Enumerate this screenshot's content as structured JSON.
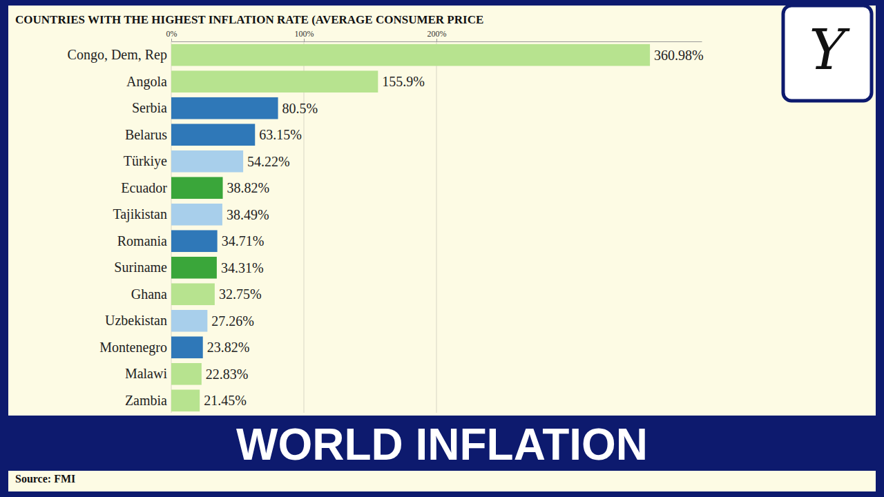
{
  "chart_data": {
    "type": "bar",
    "orientation": "horizontal",
    "title": "COUNTRIES WITH THE HIGHEST INFLATION RATE (AVERAGE CONSUMER PRICE",
    "categories": [
      "Congo, Dem, Rep",
      "Angola",
      "Serbia",
      "Belarus",
      "Türkiye",
      "Ecuador",
      "Tajikistan",
      "Romania",
      "Suriname",
      "Ghana",
      "Uzbekistan",
      "Montenegro",
      "Malawi",
      "Zambia"
    ],
    "values": [
      360.98,
      155.9,
      80.5,
      63.15,
      54.22,
      38.82,
      38.49,
      34.71,
      34.31,
      32.75,
      27.26,
      23.82,
      22.83,
      21.45
    ],
    "value_labels": [
      "360.98%",
      "155.9%",
      "80.5%",
      "63.15%",
      "54.22%",
      "38.82%",
      "38.49%",
      "34.71%",
      "34.31%",
      "32.75%",
      "27.26%",
      "23.82%",
      "22.83%",
      "21.45%"
    ],
    "colors": [
      "#b7e38f",
      "#b7e38f",
      "#2f78b8",
      "#2f78b8",
      "#a8cfeb",
      "#3aa63a",
      "#a8cfeb",
      "#2f78b8",
      "#3aa63a",
      "#b7e38f",
      "#a8cfeb",
      "#2f78b8",
      "#b7e38f",
      "#b7e38f"
    ],
    "xlim": [
      0,
      400
    ],
    "xticks": [
      {
        "value": 0,
        "label": "0%"
      },
      {
        "value": 100,
        "label": "100%"
      },
      {
        "value": 200,
        "label": "200%"
      }
    ],
    "grid": true,
    "data_labels": true,
    "banner": "WORLD INFLATION",
    "source": "Source: FMI",
    "logo": "Y"
  }
}
